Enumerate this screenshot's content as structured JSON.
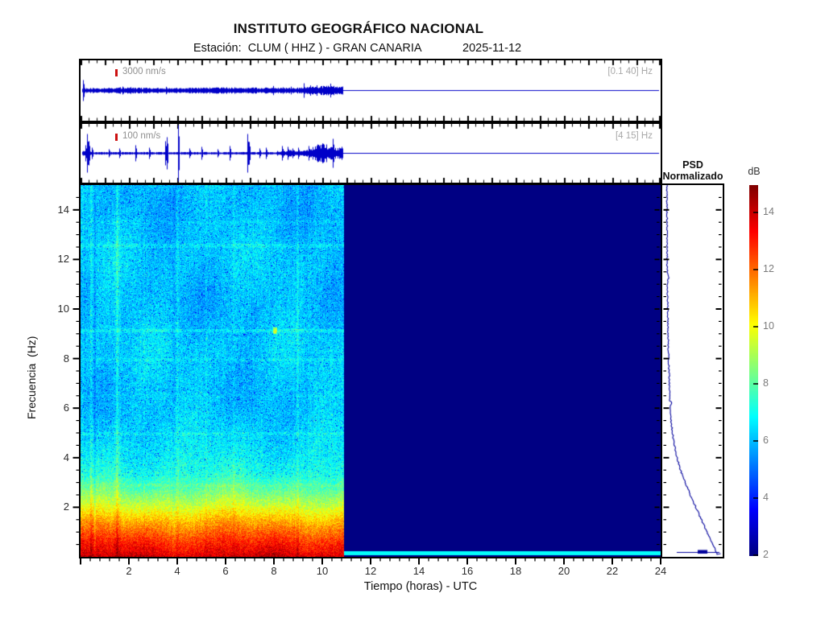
{
  "header": {
    "title": "INSTITUTO GEOGRÁFICO NACIONAL",
    "station_line": "Estación:  CLUM ( HHZ ) - GRAN CANARIA",
    "date": "2025-11-12"
  },
  "traces": [
    {
      "scale_label": "3000 nm/s",
      "band_label": "[0.1 40] Hz"
    },
    {
      "scale_label": "100 nm/s",
      "band_label": "[4 15] Hz"
    }
  ],
  "spectrogram_axes": {
    "xlabel": "Tiempo (horas) - UTC",
    "ylabel": "Frecuencia  (Hz)",
    "x_ticks": [
      2,
      4,
      6,
      8,
      10,
      12,
      14,
      16,
      18,
      20,
      22,
      24
    ],
    "y_ticks": [
      2,
      4,
      6,
      8,
      10,
      12,
      14
    ]
  },
  "psd_panel": {
    "title_line1": "PSD",
    "title_line2": "Normalizado"
  },
  "colorbar": {
    "label": "dB",
    "ticks": [
      2,
      4,
      6,
      8,
      10,
      12,
      14
    ]
  },
  "colors": {
    "waveform": "#0000c8",
    "psd_line": "#00009c",
    "marker_red": "#cc1111",
    "no_data_navy": "#000084"
  },
  "chart_data": [
    {
      "type": "line",
      "id": "seismogram-broadband",
      "scale_bar": "3000 nm/s",
      "filter_band_hz": [
        0.1,
        40
      ],
      "x_unit": "hours UTC",
      "x_range_hours": [
        0,
        24
      ],
      "signal_span_hours": [
        0,
        10.9
      ],
      "character": "uniform microseismic noise band of roughly constant amplitude; trace is a flat line (no data) after 10.9 h"
    },
    {
      "type": "line",
      "id": "seismogram-band-4-15",
      "scale_bar": "100 nm/s",
      "filter_band_hz": [
        4,
        15
      ],
      "x_range_hours": [
        0,
        24
      ],
      "signal_span_hours": [
        0,
        10.9
      ],
      "spike_hours": [
        0.2,
        0.3,
        2.3,
        3.5,
        4.05,
        6.9,
        7.0
      ],
      "largest_spike_hour": 4.05,
      "envelope": "amplitude grows steadily from about 8 h up to the data cutoff at 10.9 h, then flat (no data)"
    },
    {
      "type": "heatmap",
      "id": "spectrogram",
      "x_label": "Tiempo (horas) - UTC",
      "y_label": "Frecuencia  (Hz)",
      "x_range_hours": [
        0,
        24
      ],
      "y_range_hz": [
        0,
        15
      ],
      "x_ticks": [
        2,
        4,
        6,
        8,
        10,
        12,
        14,
        16,
        18,
        20,
        22,
        24
      ],
      "y_ticks": [
        2,
        4,
        6,
        8,
        10,
        12,
        14
      ],
      "colorbar_db": {
        "label": "dB",
        "ticks": [
          2,
          4,
          6,
          8,
          10,
          12,
          14
        ],
        "range": [
          2,
          15
        ]
      },
      "data_end_hour": 10.9,
      "no_data_db": 2,
      "background_profile_hz_db": [
        [
          0.05,
          13.8
        ],
        [
          0.25,
          13.3
        ],
        [
          0.5,
          12.9
        ],
        [
          0.75,
          12.4
        ],
        [
          1,
          11.9
        ],
        [
          1.25,
          11.4
        ],
        [
          1.5,
          10.9
        ],
        [
          1.75,
          10.3
        ],
        [
          2,
          9.7
        ],
        [
          2.25,
          9.2
        ],
        [
          2.5,
          8.7
        ],
        [
          2.75,
          8.2
        ],
        [
          3,
          7.8
        ],
        [
          3.25,
          7.4
        ],
        [
          3.5,
          7.1
        ],
        [
          4,
          6.7
        ],
        [
          4.5,
          6.45
        ],
        [
          5,
          6.3
        ],
        [
          6,
          6.2
        ],
        [
          8,
          6.15
        ],
        [
          15,
          6.05
        ]
      ],
      "bright_column_hours": [
        0.45,
        1.52,
        2.63,
        4.02,
        5.2,
        6.35,
        8.98
      ],
      "bright_row_hz": [
        4.97,
        7.95,
        9.12,
        12.55
      ],
      "cyan_strip_hz": [
        0.08,
        0.22
      ]
    },
    {
      "type": "line",
      "id": "psd-normalizado",
      "title": "PSD Normalizado",
      "orientation": "normalized power (x) vs frequency (y, shared 0-15 Hz axis)",
      "points_hz_power": [
        [
          0.05,
          0.97
        ],
        [
          0.15,
          0.95
        ],
        [
          0.3,
          0.925
        ],
        [
          0.5,
          0.885
        ],
        [
          0.75,
          0.83
        ],
        [
          1,
          0.775
        ],
        [
          1.25,
          0.725
        ],
        [
          1.5,
          0.675
        ],
        [
          1.75,
          0.625
        ],
        [
          2,
          0.575
        ],
        [
          2.5,
          0.475
        ],
        [
          3,
          0.385
        ],
        [
          3.5,
          0.3
        ],
        [
          4,
          0.235
        ],
        [
          4.5,
          0.19
        ],
        [
          5,
          0.155
        ],
        [
          5.5,
          0.13
        ],
        [
          6,
          0.115
        ],
        [
          6.5,
          0.105
        ],
        [
          7,
          0.1
        ],
        [
          8,
          0.085
        ],
        [
          9,
          0.075
        ],
        [
          10,
          0.07
        ],
        [
          12,
          0.06
        ],
        [
          15,
          0.055
        ]
      ]
    }
  ]
}
